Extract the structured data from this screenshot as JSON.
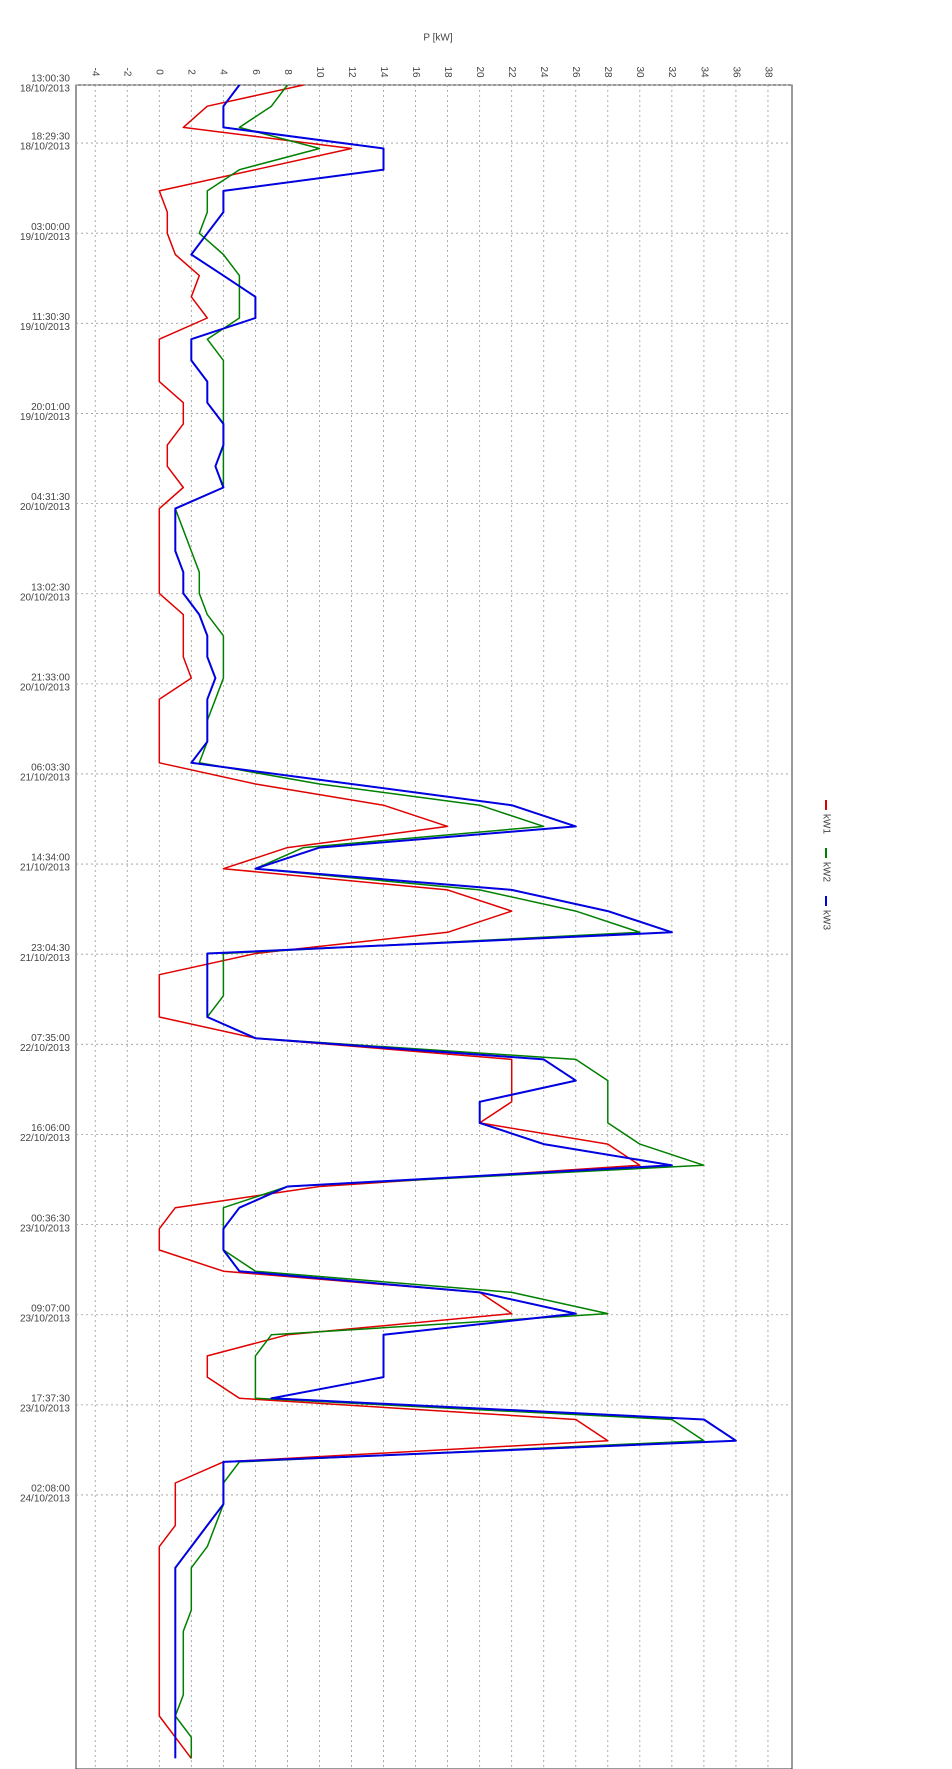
{
  "chart_data": {
    "type": "line",
    "rotated": true,
    "ylabel": "P [kW]",
    "ylim": [
      -5.2,
      39.5
    ],
    "yticks": [
      -4,
      -2,
      0,
      2,
      4,
      6,
      8,
      10,
      12,
      14,
      16,
      18,
      20,
      22,
      24,
      26,
      28,
      30,
      32,
      34,
      36,
      38
    ],
    "xlim": [
      "2013-10-18 13:00:30",
      "2013-10-25 04:00:30"
    ],
    "xticks": [
      {
        "value": "2013-10-18 13:00:30",
        "label": [
          "13:00:30",
          "18/10/2013"
        ]
      },
      {
        "value": "2013-10-18 18:29:30",
        "label": [
          "18:29:30",
          "18/10/2013"
        ]
      },
      {
        "value": "2013-10-19 03:00:00",
        "label": [
          "03:00:00",
          "19/10/2013"
        ]
      },
      {
        "value": "2013-10-19 11:30:30",
        "label": [
          "11:30:30",
          "19/10/2013"
        ]
      },
      {
        "value": "2013-10-19 20:01:00",
        "label": [
          "20:01:00",
          "19/10/2013"
        ]
      },
      {
        "value": "2013-10-20 04:31:30",
        "label": [
          "04:31:30",
          "20/10/2013"
        ]
      },
      {
        "value": "2013-10-20 13:02:30",
        "label": [
          "13:02:30",
          "20/10/2013"
        ]
      },
      {
        "value": "2013-10-20 21:33:00",
        "label": [
          "21:33:00",
          "20/10/2013"
        ]
      },
      {
        "value": "2013-10-21 06:03:30",
        "label": [
          "06:03:30",
          "21/10/2013"
        ]
      },
      {
        "value": "2013-10-21 14:34:00",
        "label": [
          "14:34:00",
          "21/10/2013"
        ]
      },
      {
        "value": "2013-10-21 23:04:30",
        "label": [
          "23:04:30",
          "21/10/2013"
        ]
      },
      {
        "value": "2013-10-22 07:35:00",
        "label": [
          "07:35:00",
          "22/10/2013"
        ]
      },
      {
        "value": "2013-10-22 16:06:00",
        "label": [
          "16:06:00",
          "22/10/2013"
        ]
      },
      {
        "value": "2013-10-23 00:36:30",
        "label": [
          "00:36:30",
          "23/10/2013"
        ]
      },
      {
        "value": "2013-10-23 09:07:00",
        "label": [
          "09:07:00",
          "23/10/2013"
        ]
      },
      {
        "value": "2013-10-23 17:37:30",
        "label": [
          "17:37:30",
          "23/10/2013"
        ]
      },
      {
        "value": "2013-10-24 02:08:00",
        "label": [
          "02:08:00",
          "24/10/2013"
        ]
      }
    ],
    "grid": true,
    "x": [
      "2013-10-18 13:00:30",
      "2013-10-18 15:00:30",
      "2013-10-18 17:00:30",
      "2013-10-18 19:00:30",
      "2013-10-18 21:00:30",
      "2013-10-18 23:00:30",
      "2013-10-19 01:00:30",
      "2013-10-19 03:00:30",
      "2013-10-19 05:00:30",
      "2013-10-19 07:00:30",
      "2013-10-19 09:00:30",
      "2013-10-19 11:00:30",
      "2013-10-19 13:00:30",
      "2013-10-19 15:00:30",
      "2013-10-19 17:00:30",
      "2013-10-19 19:00:30",
      "2013-10-19 21:00:30",
      "2013-10-19 23:00:30",
      "2013-10-20 01:00:30",
      "2013-10-20 03:00:30",
      "2013-10-20 05:00:30",
      "2013-10-20 07:00:30",
      "2013-10-20 09:00:30",
      "2013-10-20 11:00:30",
      "2013-10-20 13:00:30",
      "2013-10-20 15:00:30",
      "2013-10-20 17:00:30",
      "2013-10-20 19:00:30",
      "2013-10-20 21:00:30",
      "2013-10-20 23:00:30",
      "2013-10-21 01:00:30",
      "2013-10-21 03:00:30",
      "2013-10-21 05:00:30",
      "2013-10-21 07:00:30",
      "2013-10-21 09:00:30",
      "2013-10-21 11:00:30",
      "2013-10-21 13:00:30",
      "2013-10-21 15:00:30",
      "2013-10-21 17:00:30",
      "2013-10-21 19:00:30",
      "2013-10-21 21:00:30",
      "2013-10-21 23:00:30",
      "2013-10-22 01:00:30",
      "2013-10-22 03:00:30",
      "2013-10-22 05:00:30",
      "2013-10-22 07:00:30",
      "2013-10-22 09:00:30",
      "2013-10-22 11:00:30",
      "2013-10-22 13:00:30",
      "2013-10-22 15:00:30",
      "2013-10-22 17:00:30",
      "2013-10-22 19:00:30",
      "2013-10-22 21:00:30",
      "2013-10-22 23:00:30",
      "2013-10-23 01:00:30",
      "2013-10-23 03:00:30",
      "2013-10-23 05:00:30",
      "2013-10-23 07:00:30",
      "2013-10-23 09:00:30",
      "2013-10-23 11:00:30",
      "2013-10-23 13:00:30",
      "2013-10-23 15:00:30",
      "2013-10-23 17:00:30",
      "2013-10-23 19:00:30",
      "2013-10-23 21:00:30",
      "2013-10-23 23:00:30",
      "2013-10-24 01:00:30",
      "2013-10-24 03:00:30",
      "2013-10-24 05:00:30",
      "2013-10-24 07:00:30",
      "2013-10-24 09:00:30",
      "2013-10-24 11:00:30",
      "2013-10-24 13:00:30",
      "2013-10-24 15:00:30",
      "2013-10-24 17:00:30",
      "2013-10-24 19:00:30",
      "2013-10-24 21:00:30",
      "2013-10-24 23:00:30",
      "2013-10-25 01:00:30",
      "2013-10-25 03:00:30"
    ],
    "series": [
      {
        "name": "kW1",
        "color": "#e00000",
        "values": [
          9,
          3,
          1.5,
          12,
          6,
          0,
          0.5,
          0.5,
          1,
          2.5,
          2,
          3,
          0,
          0,
          0,
          1.5,
          1.5,
          0.5,
          0.5,
          1.5,
          0,
          0,
          0,
          0,
          0,
          1.5,
          1.5,
          1.5,
          2,
          0,
          0,
          0,
          0,
          6,
          14,
          18,
          8,
          4,
          18,
          22,
          18,
          6,
          0,
          0,
          0,
          6,
          22,
          22,
          22,
          20,
          28,
          30,
          10,
          1,
          0,
          0,
          4,
          20,
          22,
          8,
          3,
          3,
          5,
          26,
          28,
          4,
          1,
          1,
          1,
          0,
          0,
          0,
          0,
          0,
          0,
          0,
          0,
          0,
          1,
          2
        ]
      },
      {
        "name": "kW2",
        "color": "#008000",
        "values": [
          8,
          7,
          5,
          10,
          5,
          3,
          3,
          2.5,
          4,
          5,
          5,
          5,
          3,
          4,
          4,
          4,
          4,
          4,
          4,
          4,
          1,
          1.5,
          2,
          2.5,
          2.5,
          3,
          4,
          4,
          4,
          3.5,
          3,
          3,
          2.5,
          10,
          20,
          24,
          9,
          6,
          20,
          26,
          30,
          4,
          4,
          4,
          3,
          6,
          26,
          28,
          28,
          28,
          30,
          34,
          8,
          4,
          4,
          4,
          6,
          22,
          28,
          7,
          6,
          6,
          6,
          32,
          34,
          5,
          4,
          4,
          3.5,
          3,
          2,
          2,
          2,
          1.5,
          1.5,
          1.5,
          1.5,
          1,
          2,
          2
        ]
      },
      {
        "name": "kW3",
        "color": "#0000e0",
        "values": [
          5,
          4,
          4,
          14,
          14,
          4,
          4,
          3,
          2,
          4,
          6,
          6,
          2,
          2,
          3,
          3,
          4,
          4,
          3.5,
          4,
          1,
          1,
          1,
          1.5,
          1.5,
          2.5,
          3,
          3,
          3.5,
          3,
          3,
          3,
          2,
          12,
          22,
          26,
          10,
          6,
          22,
          28,
          32,
          3,
          3,
          3,
          3,
          6,
          24,
          26,
          20,
          20,
          24,
          32,
          8,
          5,
          4,
          4,
          5,
          20,
          26,
          14,
          14,
          14,
          7,
          34,
          36,
          4,
          4,
          4,
          3,
          2,
          1,
          1,
          1,
          1,
          1,
          1,
          1,
          1,
          1,
          1
        ]
      }
    ]
  }
}
